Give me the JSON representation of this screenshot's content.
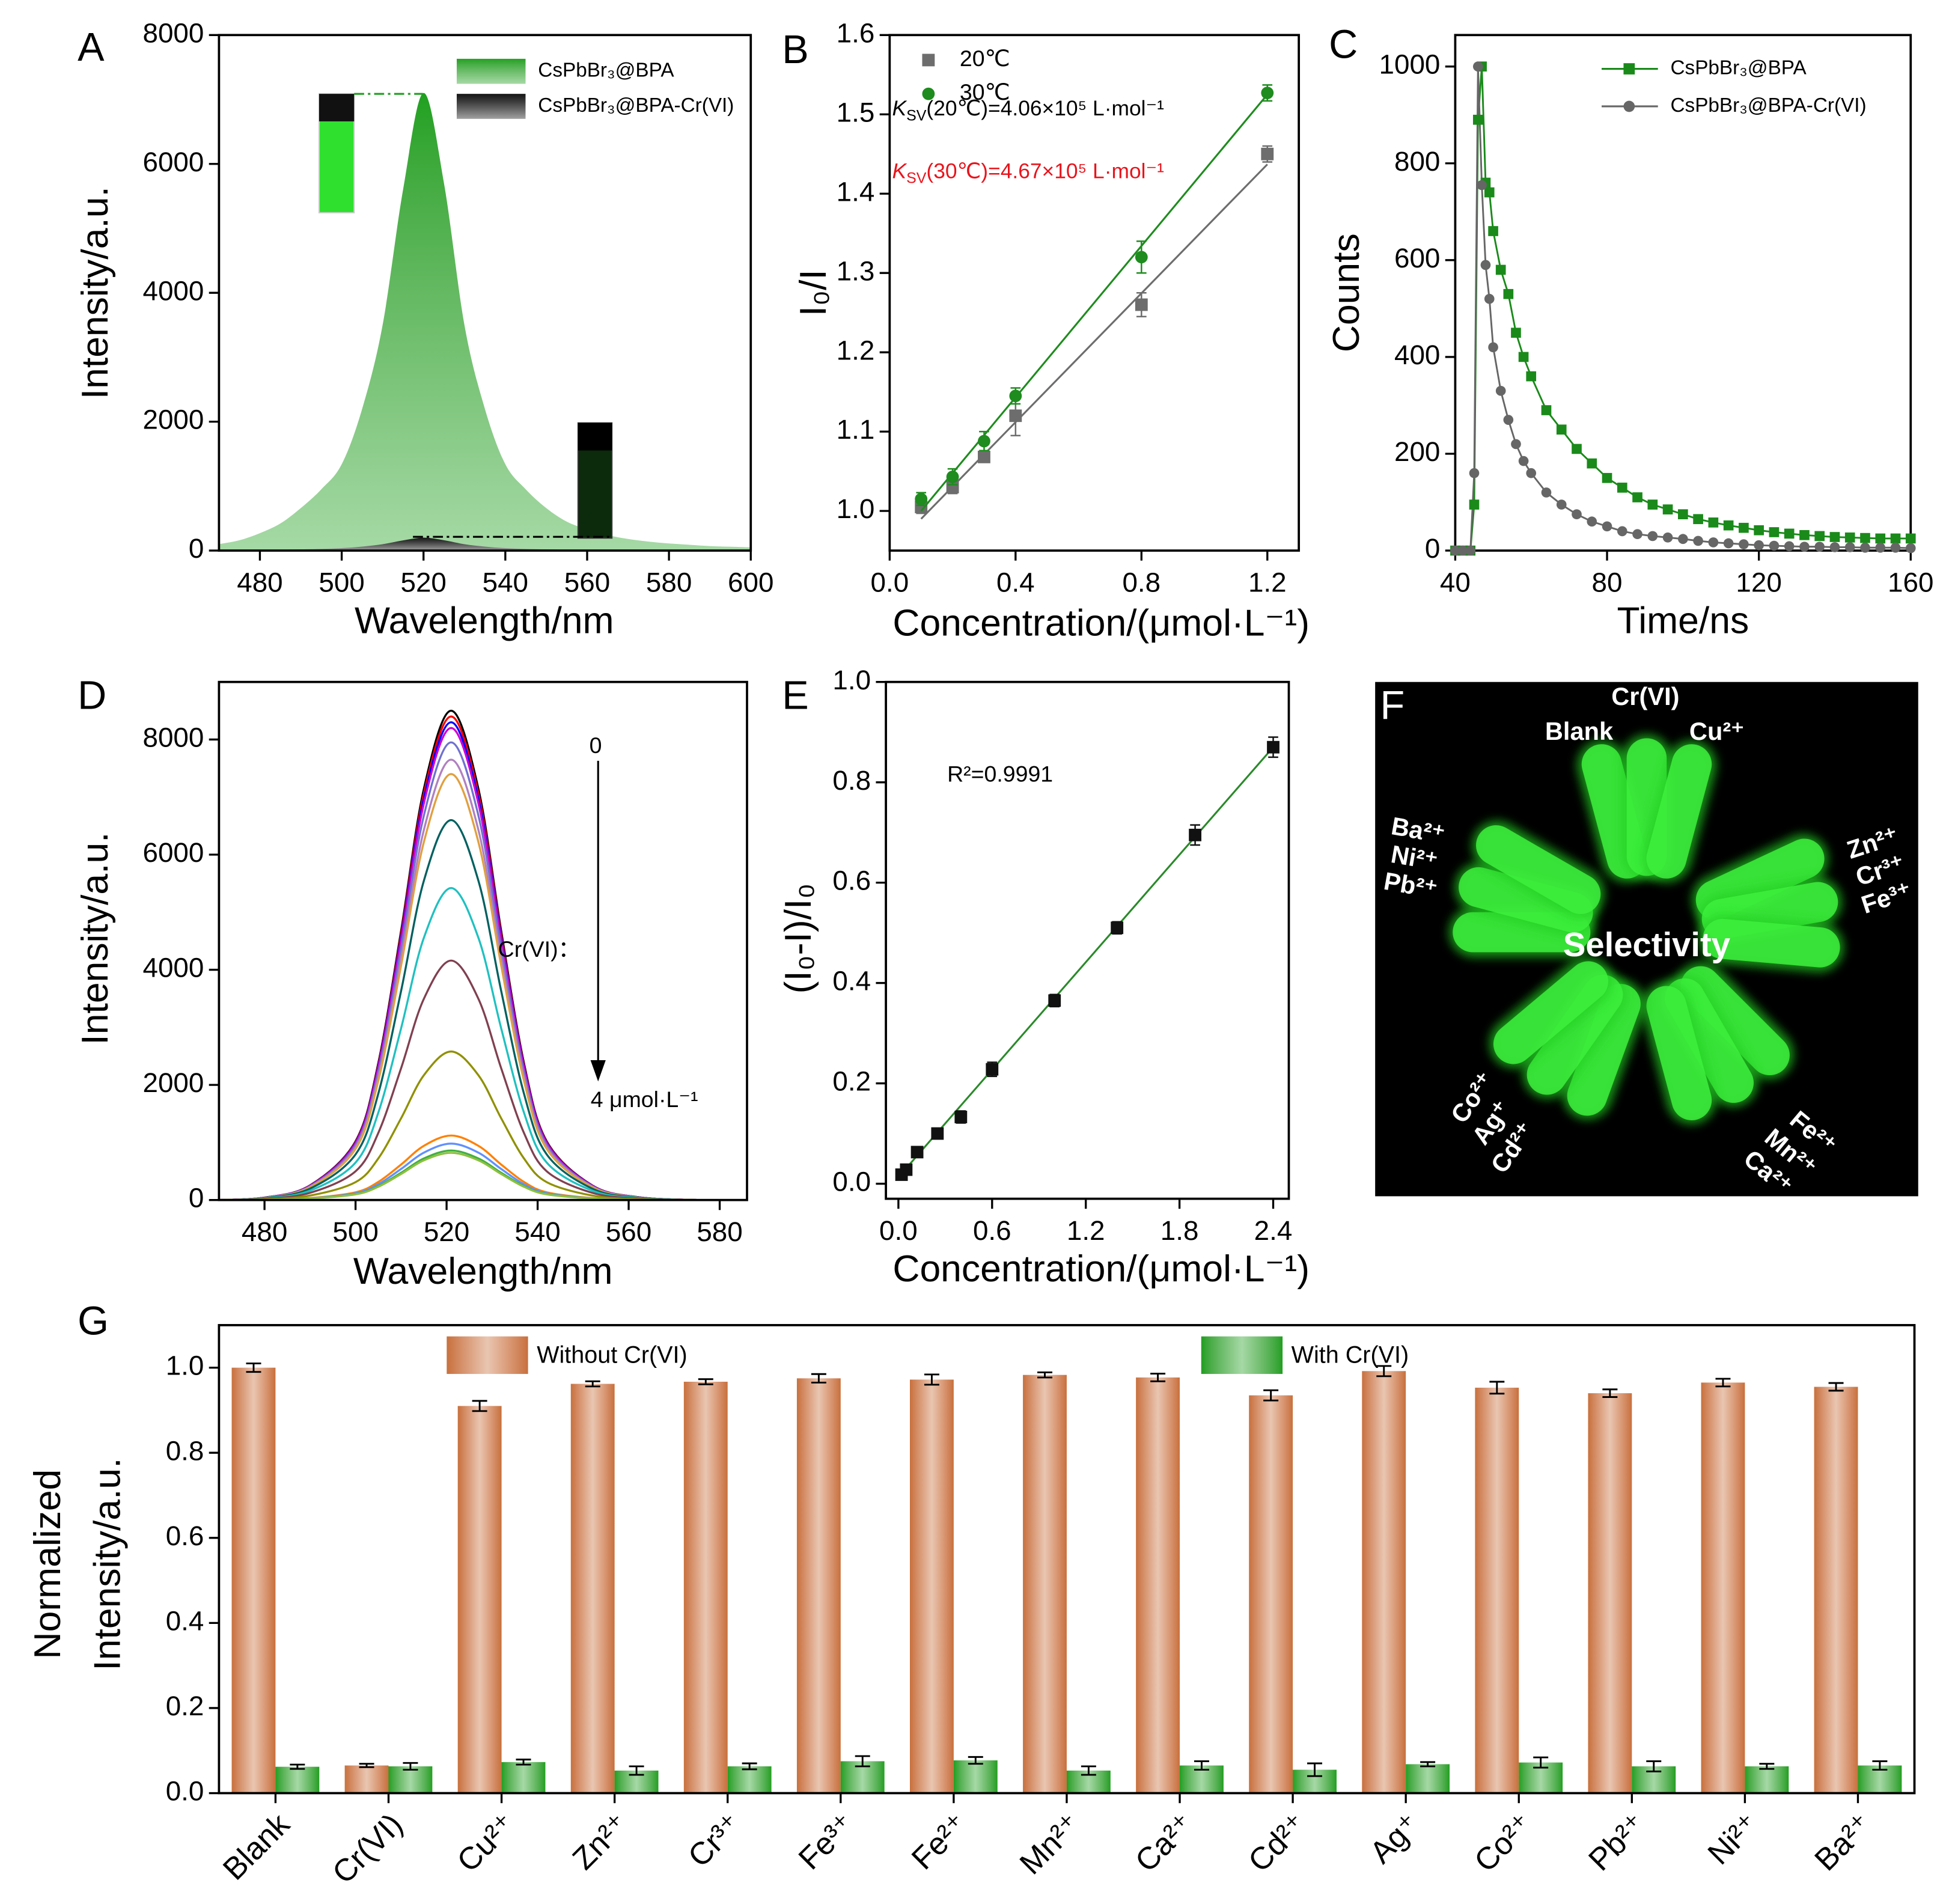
{
  "chart_data": [
    {
      "type": "area",
      "label": "A",
      "xlabel": "Wavelength/nm",
      "ylabel": "Intensity/a.u.",
      "xlim": [
        470,
        600
      ],
      "ylim": [
        0,
        8000
      ],
      "xticks": [
        480,
        500,
        520,
        540,
        560,
        580,
        600
      ],
      "yticks": [
        0,
        2000,
        4000,
        6000,
        8000
      ],
      "legend": "upper right",
      "x": [
        470,
        475,
        480,
        485,
        490,
        495,
        500,
        505,
        510,
        515,
        520,
        525,
        530,
        535,
        540,
        545,
        550,
        555,
        560,
        565,
        570,
        575,
        580,
        585,
        590,
        595,
        600
      ],
      "series": [
        {
          "name": "CsPbBr₃@BPA",
          "color": "#1fa01f",
          "values": [
            100,
            160,
            270,
            420,
            660,
            950,
            1340,
            2200,
            3500,
            5600,
            7100,
            5700,
            3500,
            2200,
            1340,
            950,
            660,
            450,
            330,
            240,
            180,
            140,
            110,
            90,
            70,
            60,
            50
          ]
        },
        {
          "name": "CsPbBr₃@BPA-Cr(VI)",
          "color": "#151515",
          "values": [
            3,
            5,
            8,
            12,
            19,
            27,
            38,
            62,
            99,
            158,
            200,
            161,
            99,
            62,
            38,
            27,
            19,
            13,
            9,
            7,
            5,
            4,
            3,
            3,
            2,
            2,
            1
          ]
        }
      ]
    },
    {
      "type": "scatter",
      "label": "B",
      "xlabel": "Concentration/(μmol·L⁻¹)",
      "ylabel": "I₀/I",
      "xlim": [
        0,
        1.3
      ],
      "ylim": [
        0.95,
        1.6
      ],
      "xticks": [
        {
          "value": 0,
          "label": "0.0"
        },
        0.4,
        0.8,
        1.2
      ],
      "yticks": [
        {
          "value": 1,
          "label": "1.0"
        },
        1.1,
        1.2,
        1.3,
        1.4,
        1.5,
        1.6
      ],
      "legend": "upper left",
      "series": [
        {
          "name": "20℃",
          "color": "#6d6d6d",
          "marker": "square",
          "x": [
            0.1,
            0.2,
            0.3,
            0.4,
            0.8,
            1.2
          ],
          "values": [
            1.005,
            1.03,
            1.068,
            1.12,
            1.26,
            1.45
          ],
          "errors": [
            0.008,
            0.008,
            0.006,
            0.025,
            0.015,
            0.01
          ],
          "fit": {
            "x": [
              0.1,
              1.2
            ],
            "values": [
              0.99,
              1.437
            ]
          }
        },
        {
          "name": "30℃",
          "color": "#1e8c1e",
          "marker": "circle",
          "x": [
            0.1,
            0.2,
            0.3,
            0.4,
            0.8,
            1.2
          ],
          "values": [
            1.015,
            1.043,
            1.088,
            1.145,
            1.32,
            1.527
          ],
          "errors": [
            0.008,
            0.01,
            0.012,
            0.01,
            0.02,
            0.01
          ],
          "fit": {
            "x": [
              0.1,
              1.2
            ],
            "values": [
              1.0,
              1.525
            ]
          }
        }
      ],
      "annotations": [
        {
          "text": "K",
          "sub": "SV",
          "rest": "(20℃)=4.06×10⁵ L·mol⁻¹",
          "color": "#000000"
        },
        {
          "text": "K",
          "sub": "SV",
          "rest": "(30℃)=4.67×10⁵ L·mol⁻¹",
          "color": "#e8141c"
        }
      ]
    },
    {
      "type": "line",
      "label": "C",
      "xlabel": "Time/ns",
      "ylabel": "Counts",
      "xlim": [
        40,
        160
      ],
      "ylim": [
        0,
        1065
      ],
      "xticks": [
        40,
        80,
        120,
        160
      ],
      "yticks": [
        0,
        200,
        400,
        600,
        800,
        1000
      ],
      "legend": "upper right",
      "x": [
        40,
        42,
        44,
        45,
        46,
        47,
        48,
        49,
        50,
        52,
        54,
        56,
        58,
        60,
        64,
        68,
        72,
        76,
        80,
        84,
        88,
        92,
        96,
        100,
        104,
        108,
        112,
        116,
        120,
        124,
        128,
        132,
        136,
        140,
        144,
        148,
        152,
        156,
        160
      ],
      "series": [
        {
          "name": "CsPbBr₃@BPA",
          "color": "#1a8a1a",
          "marker": "square",
          "values": [
            0,
            0,
            0,
            95,
            890,
            1000,
            760,
            740,
            660,
            580,
            530,
            450,
            400,
            360,
            290,
            250,
            210,
            180,
            150,
            130,
            110,
            95,
            85,
            75,
            65,
            58,
            52,
            47,
            42,
            38,
            35,
            32,
            30,
            28,
            27,
            26,
            25,
            25,
            25
          ]
        },
        {
          "name": "CsPbBr₃@BPA-Cr(VI)",
          "color": "#666666",
          "marker": "circle",
          "values": [
            0,
            0,
            0,
            160,
            1000,
            755,
            590,
            520,
            420,
            330,
            270,
            220,
            185,
            160,
            120,
            95,
            75,
            60,
            50,
            40,
            34,
            30,
            27,
            24,
            20,
            17,
            15,
            13,
            11,
            10,
            9,
            8,
            8,
            7,
            7,
            6,
            6,
            6,
            5
          ]
        }
      ]
    },
    {
      "type": "line",
      "label": "D",
      "xlabel": "Wavelength/nm",
      "ylabel": "Intensity/a.u.",
      "xlim": [
        470,
        586
      ],
      "ylim": [
        0,
        9000
      ],
      "xticks": [
        480,
        500,
        520,
        540,
        560,
        580
      ],
      "yticks": [
        0,
        2000,
        4000,
        6000,
        8000
      ],
      "smooth": true,
      "x": [
        470,
        480,
        490,
        500,
        505,
        510,
        515,
        521,
        527,
        532,
        537,
        542,
        552,
        562,
        575,
        585
      ],
      "series": [
        {
          "color": "#000000",
          "values": [
            0,
            43,
            255,
            1020,
            2380,
            4675,
            7140,
            8500,
            7140,
            4675,
            2380,
            1020,
            255,
            51,
            0,
            0
          ]
        },
        {
          "color": "#ff0000",
          "values": [
            0,
            42,
            252,
            1008,
            2352,
            4620,
            7056,
            8400,
            7056,
            4620,
            2352,
            1008,
            252,
            50,
            0,
            0
          ]
        },
        {
          "color": "#0000ff",
          "values": [
            0,
            42,
            249,
            996,
            2324,
            4565,
            6972,
            8300,
            6972,
            4565,
            2324,
            996,
            249,
            50,
            0,
            0
          ]
        },
        {
          "color": "#d000d0",
          "values": [
            0,
            41,
            246,
            984,
            2296,
            4510,
            6888,
            8200,
            6888,
            4510,
            2296,
            984,
            246,
            49,
            0,
            0
          ]
        },
        {
          "color": "#7070d0",
          "values": [
            0,
            40,
            239,
            954,
            2226,
            4373,
            6678,
            7950,
            6678,
            4373,
            2226,
            954,
            239,
            48,
            0,
            0
          ]
        },
        {
          "color": "#b080c0",
          "values": [
            0,
            38,
            230,
            918,
            2142,
            4208,
            6426,
            7650,
            6426,
            4208,
            2142,
            918,
            230,
            46,
            0,
            0
          ]
        },
        {
          "color": "#e0a040",
          "values": [
            0,
            37,
            222,
            888,
            2072,
            4070,
            6216,
            7400,
            6216,
            4070,
            2072,
            888,
            222,
            44,
            0,
            0
          ]
        },
        {
          "color": "#006060",
          "values": [
            0,
            33,
            198,
            792,
            1848,
            3630,
            5544,
            6600,
            5544,
            3630,
            1848,
            792,
            198,
            40,
            0,
            0
          ]
        },
        {
          "color": "#20c0c0",
          "values": [
            0,
            27,
            163,
            650,
            1518,
            2981,
            4553,
            5420,
            4553,
            2981,
            1518,
            650,
            163,
            33,
            0,
            0
          ]
        },
        {
          "color": "#804050",
          "values": [
            0,
            21,
            125,
            499,
            1165,
            2288,
            3494,
            4160,
            3494,
            2288,
            1165,
            499,
            125,
            25,
            0,
            0
          ]
        },
        {
          "color": "#909000",
          "values": [
            0,
            13,
            77,
            310,
            722,
            1419,
            2167,
            2580,
            2167,
            1419,
            722,
            310,
            77,
            15,
            0,
            0
          ]
        },
        {
          "color": "#ff8000",
          "values": [
            0,
            6,
            34,
            134,
            314,
            616,
            941,
            1120,
            941,
            616,
            314,
            134,
            34,
            7,
            0,
            0
          ]
        },
        {
          "color": "#6090ff",
          "values": [
            0,
            5,
            29,
            118,
            274,
            539,
            823,
            980,
            823,
            539,
            274,
            118,
            29,
            6,
            0,
            0
          ]
        },
        {
          "color": "#40b040",
          "values": [
            0,
            4,
            26,
            103,
            241,
            473,
            722,
            860,
            722,
            473,
            241,
            103,
            26,
            5,
            0,
            0
          ]
        },
        {
          "color": "#90c040",
          "values": [
            0,
            4,
            25,
            98,
            230,
            451,
            689,
            820,
            689,
            451,
            230,
            98,
            25,
            5,
            0,
            0
          ]
        }
      ],
      "annotations": [
        {
          "text": "0"
        },
        {
          "text": "Cr(VI)："
        },
        {
          "text": "4 μmol·L⁻¹"
        }
      ]
    },
    {
      "type": "scatter",
      "label": "E",
      "xlabel": "Concentration/(μmol·L⁻¹)",
      "ylabel": "(I₀-I)/I₀",
      "xlim": [
        -0.08,
        2.5
      ],
      "ylim": [
        -0.03,
        1.0
      ],
      "xticks": [
        {
          "value": 0,
          "label": "0.0"
        },
        0.6,
        1.2,
        1.8,
        2.4
      ],
      "yticks": [
        {
          "value": 0,
          "label": "0.0"
        },
        0.2,
        0.4,
        0.6,
        0.8,
        {
          "value": 1,
          "label": "1.0"
        }
      ],
      "series": [
        {
          "color": "#111111",
          "marker": "square",
          "x": [
            0.02,
            0.05,
            0.12,
            0.25,
            0.4,
            0.6,
            1.0,
            1.4,
            1.9,
            2.4
          ],
          "values": [
            0.018,
            0.028,
            0.063,
            0.1,
            0.133,
            0.228,
            0.365,
            0.51,
            0.695,
            0.87
          ],
          "errors": [
            0.006,
            0.006,
            0.008,
            0.01,
            0.012,
            0.014,
            0.012,
            0.012,
            0.02,
            0.02
          ],
          "fit": {
            "x": [
              0,
              2.4
            ],
            "values": [
              0.013,
              0.87
            ],
            "color": "#2a8a2a"
          }
        }
      ],
      "annotations": [
        {
          "text": "R²=0.9991"
        }
      ]
    },
    {
      "type": "bar",
      "label": "G",
      "ylabel": [
        "Normalized",
        "Intensity/a.u."
      ],
      "ylim": [
        0,
        1.1
      ],
      "yticks": [
        {
          "value": 0,
          "label": "0.0"
        },
        0.2,
        0.4,
        0.6,
        0.8,
        {
          "value": 1,
          "label": "1.0"
        }
      ],
      "legend": "upper center",
      "categories": [
        "Blank",
        "Cr(VI)",
        "Cu²⁺",
        "Zn²⁺",
        "Cr³⁺",
        "Fe³⁺",
        "Fe²⁺",
        "Mn²⁺",
        "Ca²⁺",
        "Cd²⁺",
        "Ag⁺",
        "Co²⁺",
        "Pb²⁺",
        "Ni²⁺",
        "Ba²⁺"
      ],
      "series": [
        {
          "name": "Without Cr(VI)",
          "color": "#c8703c",
          "values": [
            1.0,
            0.065,
            0.91,
            0.962,
            0.967,
            0.975,
            0.972,
            0.983,
            0.977,
            0.935,
            0.992,
            0.953,
            0.94,
            0.965,
            0.955
          ],
          "errors": [
            0.01,
            0.004,
            0.012,
            0.006,
            0.006,
            0.01,
            0.012,
            0.006,
            0.009,
            0.012,
            0.012,
            0.014,
            0.009,
            0.009,
            0.009
          ]
        },
        {
          "name": "With Cr(VI)",
          "color": "#1f9e1f",
          "values": [
            0.062,
            0.063,
            0.073,
            0.053,
            0.063,
            0.075,
            0.077,
            0.053,
            0.065,
            0.055,
            0.068,
            0.072,
            0.063,
            0.063,
            0.065
          ],
          "errors": [
            0.005,
            0.008,
            0.006,
            0.01,
            0.007,
            0.012,
            0.008,
            0.01,
            0.01,
            0.015,
            0.005,
            0.012,
            0.012,
            0.006,
            0.01
          ]
        }
      ]
    }
  ],
  "photo": {
    "label": "F",
    "title": "Selectivity",
    "tubes": [
      "Cr(VI)",
      "Blank",
      "Cu²⁺",
      "Zn²⁺",
      "Cr³⁺",
      "Fe³⁺",
      "Fe²⁺",
      "Mn²⁺",
      "Ca²⁺",
      "Co²⁺",
      "Ag⁺",
      "Cd²⁺",
      "Ba²⁺",
      "Ni²⁺",
      "Pb²⁺"
    ]
  }
}
